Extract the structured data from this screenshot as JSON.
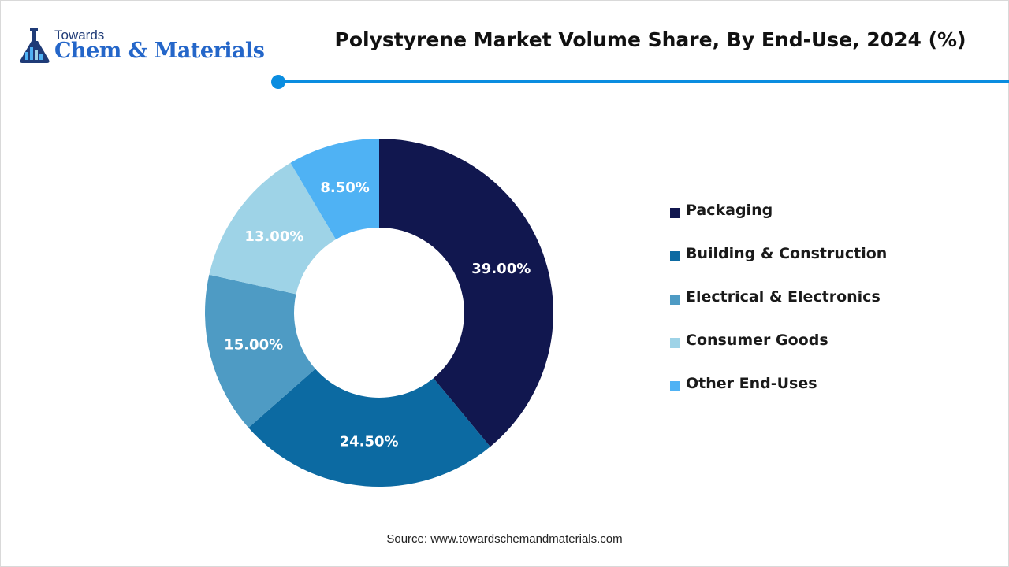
{
  "logo": {
    "top_text": "Towards",
    "main_text": "Chem & Materials"
  },
  "title": "Polystyrene Market Volume Share, By End-Use, 2024 (%)",
  "source": "Source: www.towardschemandmaterials.com",
  "colors": {
    "accent": "#0a8de0",
    "logo_dark": "#1f3b77",
    "logo_blue": "#2466c9"
  },
  "chart_data": {
    "type": "pie",
    "variant": "donut",
    "title": "Polystyrene Market Volume Share, By End-Use, 2024 (%)",
    "unit": "%",
    "start_angle": "12 o'clock",
    "direction": "clockwise",
    "legend_position": "right",
    "categories": [
      "Packaging",
      "Building & Construction",
      "Electrical & Electronics",
      "Consumer Goods",
      "Other End-Uses"
    ],
    "values": [
      39.0,
      24.5,
      15.0,
      13.0,
      8.5
    ],
    "labels": [
      "39.00%",
      "24.50%",
      "15.00%",
      "13.00%",
      "8.50%"
    ],
    "colors": [
      "#11174f",
      "#0c6aa2",
      "#4e9bc4",
      "#9ed3e7",
      "#4fb2f4"
    ]
  }
}
